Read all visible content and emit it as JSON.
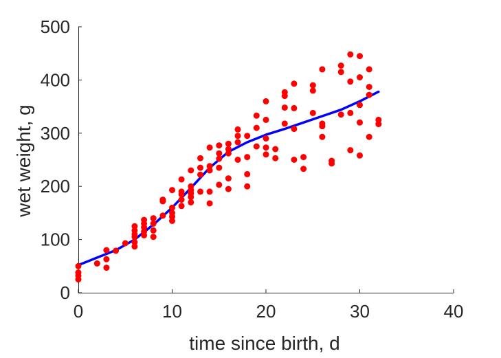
{
  "chart_data": {
    "type": "scatter",
    "xlabel": "time since birth, d",
    "ylabel": "wet weight, g",
    "xlim": [
      0,
      40
    ],
    "ylim": [
      0,
      500
    ],
    "xticks": [
      0,
      10,
      20,
      30,
      40
    ],
    "yticks": [
      0,
      100,
      200,
      300,
      400,
      500
    ],
    "grid": false,
    "colors": {
      "points": "#ff0000",
      "fit": "#0000ff",
      "axis": "#262626"
    },
    "series": [
      {
        "type": "scatter",
        "points": [
          [
            0,
            25
          ],
          [
            0,
            32
          ],
          [
            0,
            38
          ],
          [
            0,
            50
          ],
          [
            2,
            55
          ],
          [
            3,
            47
          ],
          [
            3,
            63
          ],
          [
            3,
            80
          ],
          [
            4,
            79
          ],
          [
            5,
            93
          ],
          [
            6,
            87
          ],
          [
            6,
            95
          ],
          [
            6,
            105
          ],
          [
            6,
            110
          ],
          [
            6,
            117
          ],
          [
            6,
            125
          ],
          [
            7,
            108
          ],
          [
            7,
            115
          ],
          [
            7,
            123
          ],
          [
            7,
            130
          ],
          [
            7,
            137
          ],
          [
            8,
            105
          ],
          [
            8,
            117
          ],
          [
            8,
            130
          ],
          [
            8,
            140
          ],
          [
            9,
            145
          ],
          [
            9,
            172
          ],
          [
            9,
            175
          ],
          [
            10,
            135
          ],
          [
            10,
            143
          ],
          [
            10,
            150
          ],
          [
            10,
            160
          ],
          [
            10,
            193
          ],
          [
            11,
            163
          ],
          [
            11,
            175
          ],
          [
            11,
            185
          ],
          [
            11,
            190
          ],
          [
            11,
            213
          ],
          [
            12,
            170
          ],
          [
            12,
            180
          ],
          [
            12,
            187
          ],
          [
            12,
            193
          ],
          [
            12,
            200
          ],
          [
            12,
            230
          ],
          [
            13,
            190
          ],
          [
            13,
            222
          ],
          [
            13,
            235
          ],
          [
            13,
            253
          ],
          [
            14,
            168
          ],
          [
            14,
            190
          ],
          [
            14,
            230
          ],
          [
            14,
            238
          ],
          [
            14,
            273
          ],
          [
            15,
            203
          ],
          [
            15,
            235
          ],
          [
            15,
            252
          ],
          [
            15,
            262
          ],
          [
            15,
            277
          ],
          [
            16,
            195
          ],
          [
            16,
            215
          ],
          [
            16,
            262
          ],
          [
            16,
            270
          ],
          [
            16,
            280
          ],
          [
            17,
            250
          ],
          [
            17,
            283
          ],
          [
            17,
            295
          ],
          [
            17,
            307
          ],
          [
            18,
            200
          ],
          [
            18,
            223
          ],
          [
            18,
            255
          ],
          [
            18,
            295
          ],
          [
            19,
            275
          ],
          [
            19,
            310
          ],
          [
            19,
            333
          ],
          [
            20,
            260
          ],
          [
            20,
            273
          ],
          [
            20,
            290
          ],
          [
            20,
            325
          ],
          [
            20,
            360
          ],
          [
            21,
            253
          ],
          [
            21,
            270
          ],
          [
            22,
            318
          ],
          [
            22,
            348
          ],
          [
            22,
            370
          ],
          [
            22,
            377
          ],
          [
            23,
            250
          ],
          [
            23,
            308
          ],
          [
            23,
            347
          ],
          [
            23,
            393
          ],
          [
            24,
            233
          ],
          [
            24,
            255
          ],
          [
            25,
            338
          ],
          [
            25,
            380
          ],
          [
            25,
            390
          ],
          [
            26,
            293
          ],
          [
            26,
            313
          ],
          [
            26,
            318
          ],
          [
            26,
            420
          ],
          [
            27,
            243
          ],
          [
            27,
            248
          ],
          [
            28,
            335
          ],
          [
            28,
            415
          ],
          [
            28,
            427
          ],
          [
            29,
            268
          ],
          [
            29,
            338
          ],
          [
            29,
            397
          ],
          [
            29,
            448
          ],
          [
            30,
            258
          ],
          [
            30,
            320
          ],
          [
            30,
            353
          ],
          [
            30,
            405
          ],
          [
            30,
            445
          ],
          [
            31,
            293
          ],
          [
            31,
            372
          ],
          [
            31,
            387
          ],
          [
            31,
            420
          ],
          [
            32,
            317
          ],
          [
            32,
            325
          ]
        ]
      },
      {
        "type": "line",
        "points": [
          [
            0,
            52
          ],
          [
            2,
            66
          ],
          [
            4,
            80
          ],
          [
            6,
            100
          ],
          [
            8,
            128
          ],
          [
            10,
            160
          ],
          [
            12,
            197
          ],
          [
            14,
            235
          ],
          [
            16,
            265
          ],
          [
            18,
            283
          ],
          [
            20,
            297
          ],
          [
            22,
            308
          ],
          [
            24,
            320
          ],
          [
            26,
            332
          ],
          [
            28,
            344
          ],
          [
            30,
            360
          ],
          [
            32,
            378
          ]
        ]
      }
    ]
  }
}
